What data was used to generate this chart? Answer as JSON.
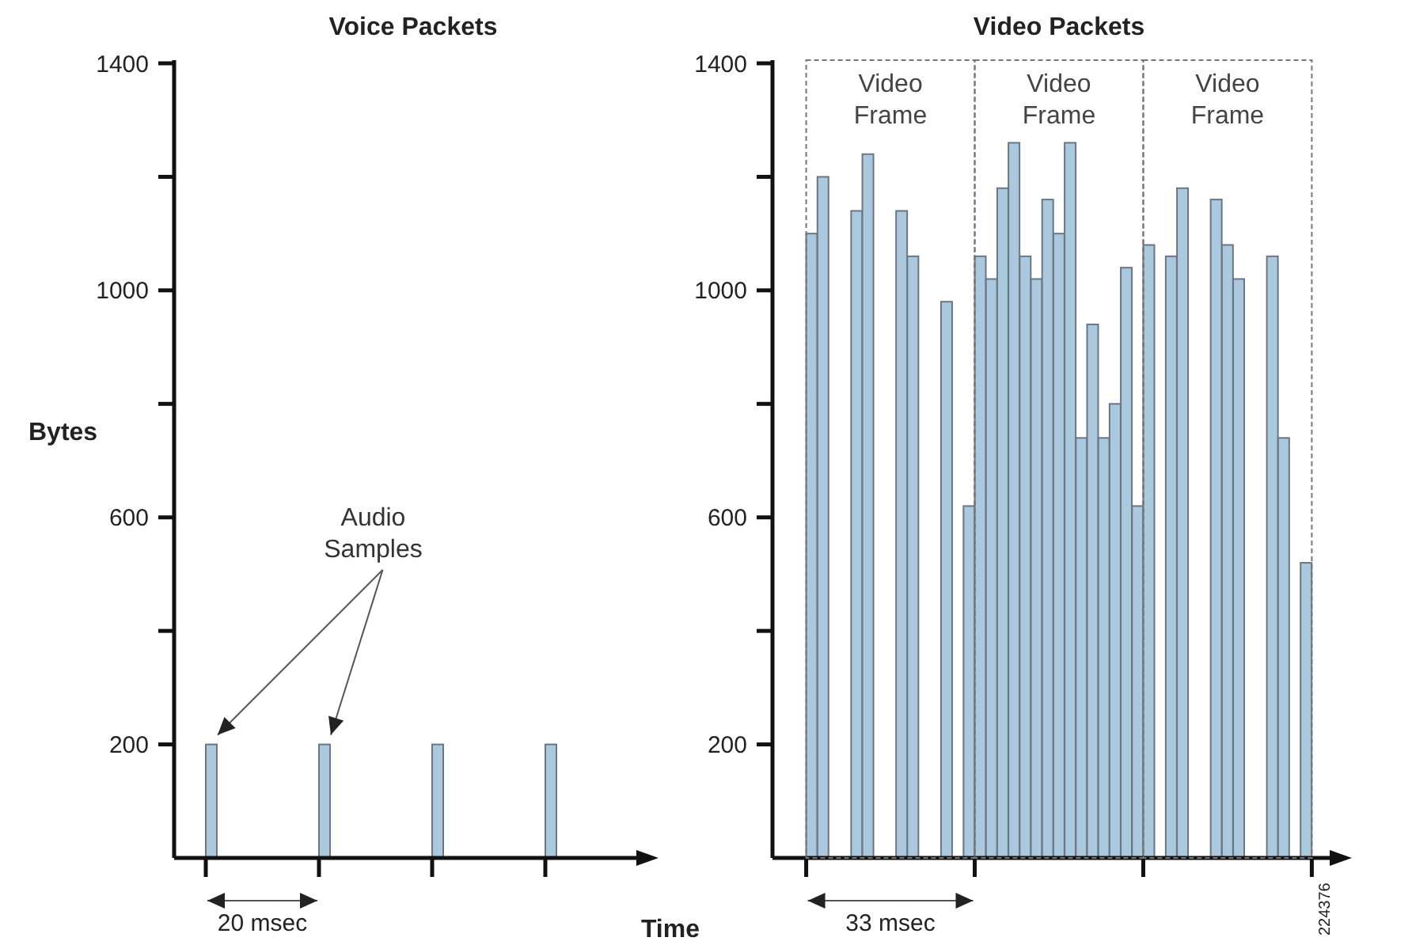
{
  "chart_data": [
    {
      "type": "bar",
      "title": "Voice Packets",
      "xlabel": "Time",
      "ylabel": "Bytes",
      "categories": [
        null,
        null,
        null,
        null
      ],
      "values": [
        200,
        200,
        200,
        200
      ],
      "color": "#aac8de",
      "ylim": [
        0,
        1400
      ],
      "yticks": [
        200,
        {
          "value": 400,
          "label": null
        },
        600,
        {
          "value": 800,
          "label": null
        },
        1000,
        {
          "value": 1200,
          "label": null
        },
        1400
      ],
      "annotations": [
        "Audio Samples",
        "20 msec"
      ]
    },
    {
      "type": "bar",
      "title": "Video Packets",
      "categories": [
        null,
        null,
        null,
        null,
        null,
        null,
        null,
        null,
        null,
        null,
        null,
        null,
        null,
        null,
        null,
        null,
        null,
        null,
        null,
        null,
        null,
        null,
        null,
        null,
        null,
        null,
        null,
        null,
        null,
        null,
        null,
        null,
        null,
        null,
        null,
        null,
        null,
        null,
        null,
        null,
        null,
        null,
        null,
        null,
        null,
        null,
        null,
        null,
        null,
        null,
        null
      ],
      "values": [
        null,
        null,
        null,
        1100,
        1200,
        null,
        null,
        1140,
        1240,
        null,
        null,
        1140,
        1060,
        null,
        null,
        980,
        null,
        620,
        1060,
        1020,
        1180,
        1260,
        1060,
        1020,
        1160,
        1100,
        1260,
        740,
        940,
        740,
        800,
        1040,
        620,
        1080,
        null,
        1060,
        1180,
        null,
        null,
        1160,
        1080,
        1020,
        null,
        null,
        1060,
        740,
        null,
        520,
        null,
        null,
        null
      ],
      "color": "#aac8de",
      "ylim": [
        0,
        1400
      ],
      "yticks": [
        200,
        {
          "value": 400,
          "label": null
        },
        600,
        {
          "value": 800,
          "label": null
        },
        1000,
        {
          "value": 1200,
          "label": null
        },
        1400
      ],
      "annotations": [
        "Video Frame",
        "Video Frame",
        "Video Frame",
        "33 msec",
        "224376"
      ]
    }
  ]
}
